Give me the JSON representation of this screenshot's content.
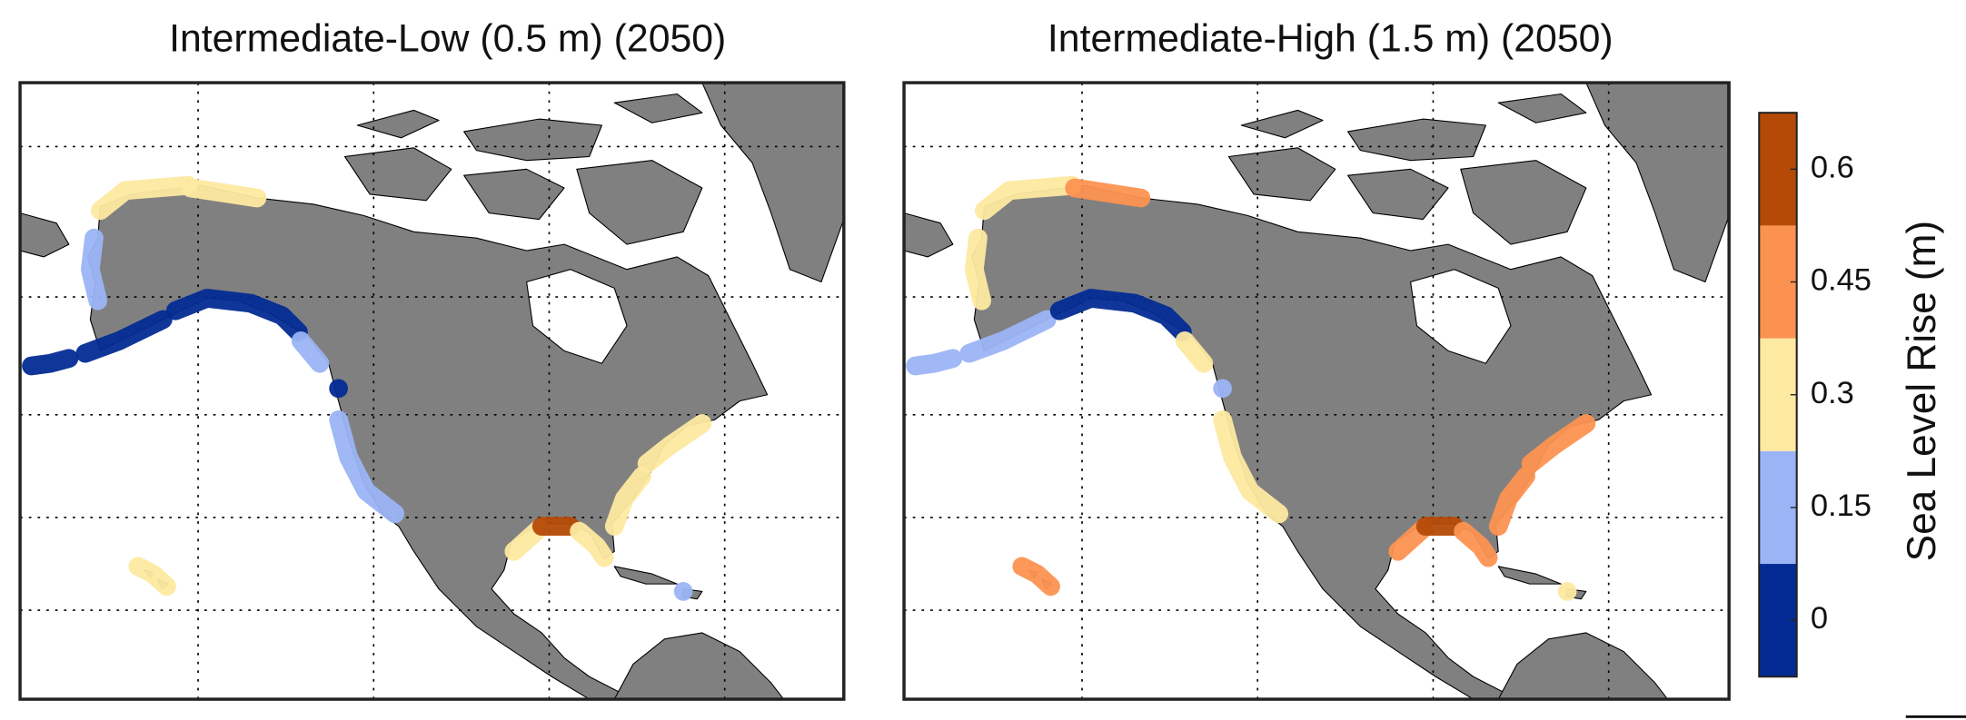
{
  "panels": [
    {
      "title": "Intermediate-Low (0.5 m) (2050)",
      "values": [
        0.3,
        0.3,
        0.15,
        0,
        0,
        0,
        0.15,
        0,
        0.15,
        0.3,
        0.6,
        0.3,
        0.3,
        0.3,
        0.3,
        0.15
      ]
    },
    {
      "title": "Intermediate-High (1.5 m) (2050)",
      "values": [
        0.3,
        0.45,
        0.3,
        0.15,
        0.15,
        0,
        0.3,
        0.15,
        0.3,
        0.45,
        0.6,
        0.45,
        0.45,
        0.45,
        0.45,
        0.3
      ]
    }
  ],
  "colorbar": {
    "label": "Sea Level Rise (m)",
    "lim": [
      -0.075,
      0.675
    ],
    "ticks": [
      0,
      0.15,
      0.3,
      0.45,
      0.6
    ],
    "colors": [
      "#032b93",
      "#9bb4f6",
      "#fde9a0",
      "#fc9250",
      "#b54a06"
    ]
  }
}
